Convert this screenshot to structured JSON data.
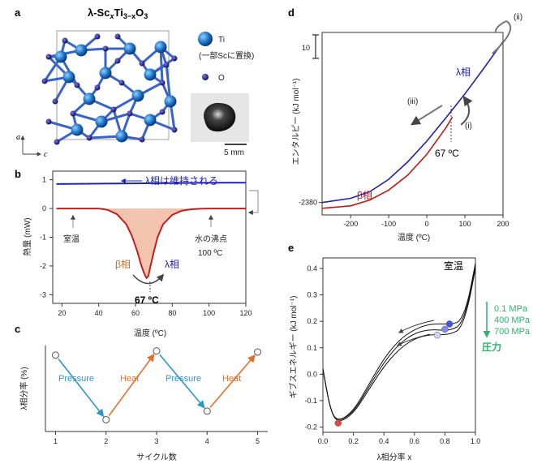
{
  "panels": {
    "a": {
      "label": "a",
      "title": "λ-Sc",
      "title_sub": "x",
      "title_mid": "Ti",
      "title_sub2": "3−x",
      "title_end": "O",
      "title_sub3": "3",
      "legend_ti": "Ti",
      "legend_ti_note": "(一部Scに置換)",
      "legend_o": "O",
      "axis_a": "a",
      "axis_c": "c",
      "scale": "5 mm",
      "colors": {
        "ti": "#1e74c8",
        "o": "#1f1a8c",
        "bond": "#3a63c9"
      }
    },
    "b": {
      "label": "b",
      "ylabel": "熱量 (mW)",
      "xlabel": "温度 (ºC)",
      "lambda_note": "λ相は維持される",
      "room_temp": "室温",
      "boiling": "水の沸点",
      "boiling_temp": "100 ºC",
      "beta": "β相",
      "lambda": "λ相",
      "peak": "67 ºC",
      "colors": {
        "lambda": "#1f22b8",
        "beta": "#c01f1f",
        "fill": "#f2c3ad"
      }
    },
    "c": {
      "label": "c",
      "ylabel": "λ相分率 (%)",
      "xlabel": "サイクル数",
      "pressure": "Pressure",
      "heat": "Heat",
      "colors": {
        "pressure": "#2f97c7",
        "heat": "#e36f2c"
      }
    },
    "d": {
      "label": "d",
      "ylabel": "エンタルピー (kJ mol⁻¹)",
      "xlabel": "温度 (ºC)",
      "lambda": "λ相",
      "beta": "β相",
      "i": "(i)",
      "ii": "(ii)",
      "iii": "(iii)",
      "transition": "67 ºC",
      "scale_value": "10",
      "y_tick": "-2380",
      "colors": {
        "lambda": "#2020b0",
        "beta": "#c01818"
      }
    },
    "e": {
      "label": "e",
      "ylabel": "ギブスエネルギー (kJ mol⁻¹)",
      "xlabel": "λ相分率 x",
      "room_temp": "室温",
      "p1": "0.1 MPa",
      "p2": "400 MPa",
      "p3": "700 MPa",
      "pressure_label": "圧力",
      "colors": {
        "pressure": "#2db36a"
      }
    }
  },
  "chart_data": [
    {
      "panel": "b",
      "type": "line",
      "xlabel": "温度 (ºC)",
      "ylabel": "熱量 (mW)",
      "xlim": [
        15,
        120
      ],
      "ylim": [
        -3.3,
        1.3
      ],
      "xticks": [
        20,
        40,
        60,
        80,
        100,
        120
      ],
      "yticks": [
        -3,
        -2,
        -1,
        0,
        1
      ],
      "series": [
        {
          "name": "λ相",
          "x": [
            17,
            30,
            50,
            70,
            90,
            110,
            120
          ],
          "y": [
            0.85,
            0.86,
            0.87,
            0.88,
            0.89,
            0.9,
            0.9
          ]
        },
        {
          "name": "β相",
          "x": [
            17,
            40,
            45,
            50,
            55,
            58,
            61,
            63,
            65,
            66,
            67,
            68,
            70,
            72,
            75,
            80,
            85,
            90,
            95,
            100,
            110,
            120
          ],
          "y": [
            0,
            0,
            -0.05,
            -0.2,
            -0.55,
            -0.95,
            -1.5,
            -1.95,
            -2.3,
            -2.42,
            -2.35,
            -2.05,
            -1.5,
            -1.0,
            -0.55,
            -0.22,
            -0.08,
            -0.03,
            -0.01,
            0,
            0,
            0
          ]
        }
      ]
    },
    {
      "panel": "c",
      "type": "line",
      "xlabel": "サイクル数",
      "ylabel": "λ相分率 (%)",
      "xlim": [
        0.8,
        5.2
      ],
      "ylim": [
        20,
        100
      ],
      "xticks": [
        1,
        2,
        3,
        4,
        5
      ],
      "x": [
        1,
        2,
        3,
        4,
        5
      ],
      "y": [
        91,
        31,
        95,
        39,
        94
      ]
    },
    {
      "panel": "d",
      "type": "line",
      "xlabel": "温度 (ºC)",
      "ylabel": "エンタルピー (kJ mol⁻¹)",
      "xlim": [
        -275,
        200
      ],
      "xticks": [
        -200,
        -100,
        0,
        100,
        200
      ],
      "y_ticks": [
        -2380
      ],
      "series": [
        {
          "name": "λ相",
          "x": [
            -275,
            -200,
            -150,
            -100,
            -50,
            0,
            50,
            100,
            150,
            200
          ],
          "y": [
            -2380.0,
            -2379.5,
            -2378.7,
            -2377.2,
            -2375.1,
            -2372.6,
            -2369.8,
            -2366.9,
            -2363.8,
            -2360.6
          ]
        },
        {
          "name": "β相",
          "x": [
            -275,
            -200,
            -150,
            -100,
            -50,
            0,
            50,
            67
          ],
          "y": [
            -2380.7,
            -2380.4,
            -2379.7,
            -2378.5,
            -2376.7,
            -2374.2,
            -2371.0,
            -2369.7
          ]
        }
      ]
    },
    {
      "panel": "e",
      "type": "line",
      "xlabel": "λ相分率 x",
      "ylabel": "ギブスエネルギー (kJ mol⁻¹)",
      "xlim": [
        0,
        1
      ],
      "ylim": [
        -0.22,
        0.44
      ],
      "xticks": [
        0.0,
        0.2,
        0.4,
        0.6,
        0.8,
        1.0
      ],
      "yticks": [
        -0.2,
        -0.1,
        0.0,
        0.1,
        0.2,
        0.3,
        0.4
      ],
      "series": [
        {
          "name": "0.1 MPa",
          "x": [
            0.0,
            0.05,
            0.1,
            0.2,
            0.3,
            0.4,
            0.5,
            0.6,
            0.7,
            0.8,
            0.85,
            0.9,
            0.95,
            1.0
          ],
          "y": [
            0.02,
            -0.14,
            -0.18,
            -0.14,
            -0.04,
            0.06,
            0.13,
            0.17,
            0.19,
            0.19,
            0.19,
            0.2,
            0.27,
            0.42
          ]
        },
        {
          "name": "400 MPa",
          "x": [
            0.0,
            0.05,
            0.1,
            0.2,
            0.3,
            0.4,
            0.5,
            0.6,
            0.7,
            0.8,
            0.85,
            0.9,
            0.95,
            1.0
          ],
          "y": [
            0.02,
            -0.14,
            -0.18,
            -0.145,
            -0.05,
            0.045,
            0.115,
            0.155,
            0.17,
            0.165,
            0.17,
            0.185,
            0.26,
            0.41
          ]
        },
        {
          "name": "700 MPa",
          "x": [
            0.0,
            0.05,
            0.1,
            0.2,
            0.3,
            0.4,
            0.5,
            0.6,
            0.7,
            0.8,
            0.85,
            0.9,
            0.95,
            1.0
          ],
          "y": [
            0.02,
            -0.14,
            -0.185,
            -0.15,
            -0.06,
            0.03,
            0.095,
            0.135,
            0.15,
            0.15,
            0.155,
            0.17,
            0.25,
            0.4
          ]
        }
      ],
      "markers": [
        {
          "x": 0.1,
          "y": -0.185,
          "color": "#e04a4a"
        },
        {
          "x": 0.75,
          "y": 0.148,
          "color": "#c9d3ff"
        },
        {
          "x": 0.8,
          "y": 0.17,
          "color": "#7d8cf0"
        },
        {
          "x": 0.83,
          "y": 0.19,
          "color": "#4455e0"
        }
      ]
    }
  ]
}
